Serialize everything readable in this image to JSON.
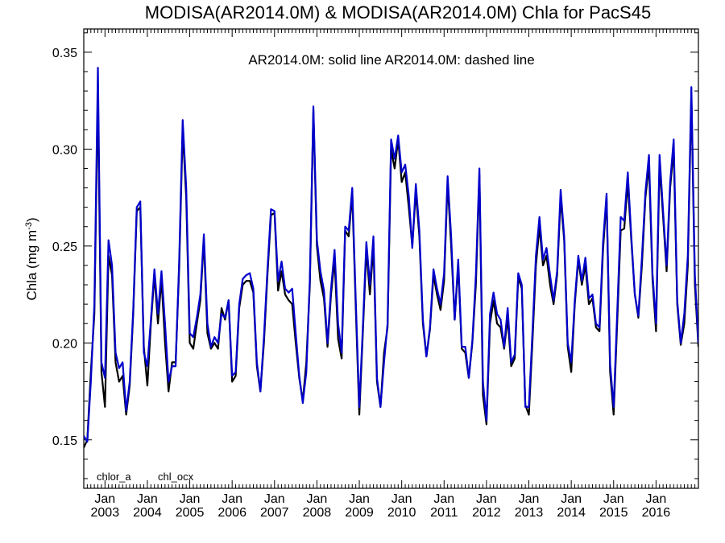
{
  "chart_data": {
    "type": "line",
    "title": "MODISA(AR2014.0M) & MODISA(AR2014.0M)  Chla for PacS45",
    "annotation": "AR2014.0M: solid line   AR2014.0M: dashed line",
    "ylabel": "Chla (mg m",
    "ylabel_sup": "-3",
    "ylabel_close": ")",
    "xlabel": "",
    "xlim": [
      2002.5,
      2017.0
    ],
    "ylim": [
      0.125,
      0.362
    ],
    "yticks": [
      0.15,
      0.2,
      0.25,
      0.3,
      0.35
    ],
    "ytick_labels": [
      "0.15",
      "0.20",
      "0.25",
      "0.30",
      "0.35"
    ],
    "xticks": [
      2003,
      2004,
      2005,
      2006,
      2007,
      2008,
      2009,
      2010,
      2011,
      2012,
      2013,
      2014,
      2015,
      2016
    ],
    "xtick_month": "Jan",
    "xtick_years": [
      "2003",
      "2004",
      "2005",
      "2006",
      "2007",
      "2008",
      "2009",
      "2010",
      "2011",
      "2012",
      "2013",
      "2014",
      "2015",
      "2016"
    ],
    "grid": false,
    "legend_position": "bottom-left",
    "x_start": 2002.5,
    "x_step_months": 1,
    "series": [
      {
        "name": "chlor_a",
        "color": "#000000",
        "values": [
          0.146,
          0.15,
          0.185,
          0.215,
          0.33,
          0.185,
          0.167,
          0.245,
          0.235,
          0.19,
          0.18,
          0.183,
          0.163,
          0.178,
          0.215,
          0.268,
          0.27,
          0.198,
          0.178,
          0.21,
          0.235,
          0.21,
          0.233,
          0.2,
          0.175,
          0.19,
          0.19,
          0.238,
          0.31,
          0.275,
          0.2,
          0.197,
          0.21,
          0.222,
          0.253,
          0.205,
          0.197,
          0.2,
          0.197,
          0.218,
          0.212,
          0.222,
          0.18,
          0.183,
          0.218,
          0.23,
          0.232,
          0.232,
          0.226,
          0.188,
          0.175,
          0.2,
          0.235,
          0.266,
          0.267,
          0.227,
          0.237,
          0.225,
          0.222,
          0.22,
          0.2,
          0.182,
          0.17,
          0.19,
          0.23,
          0.32,
          0.25,
          0.232,
          0.223,
          0.198,
          0.225,
          0.243,
          0.202,
          0.192,
          0.258,
          0.255,
          0.277,
          0.218,
          0.163,
          0.205,
          0.248,
          0.225,
          0.25,
          0.18,
          0.167,
          0.195,
          0.208,
          0.3,
          0.29,
          0.305,
          0.283,
          0.288,
          0.27,
          0.25,
          0.278,
          0.255,
          0.21,
          0.193,
          0.207,
          0.235,
          0.225,
          0.217,
          0.232,
          0.283,
          0.25,
          0.212,
          0.24,
          0.197,
          0.195,
          0.182,
          0.2,
          0.23,
          0.287,
          0.173,
          0.158,
          0.21,
          0.222,
          0.21,
          0.208,
          0.197,
          0.213,
          0.188,
          0.192,
          0.234,
          0.228,
          0.168,
          0.163,
          0.2,
          0.24,
          0.26,
          0.24,
          0.245,
          0.23,
          0.22,
          0.235,
          0.275,
          0.253,
          0.198,
          0.185,
          0.22,
          0.243,
          0.23,
          0.24,
          0.22,
          0.223,
          0.208,
          0.206,
          0.248,
          0.275,
          0.185,
          0.163,
          0.21,
          0.258,
          0.259,
          0.283,
          0.253,
          0.225,
          0.213,
          0.24,
          0.275,
          0.292,
          0.233,
          0.206,
          0.292,
          0.265,
          0.237,
          0.28,
          0.3,
          0.22,
          0.199,
          0.21,
          0.24,
          0.328,
          0.23,
          0.198
        ]
      },
      {
        "name": "chl_ocx",
        "color": "#0000cc",
        "values": [
          0.152,
          0.149,
          0.18,
          0.22,
          0.342,
          0.19,
          0.182,
          0.253,
          0.24,
          0.195,
          0.187,
          0.19,
          0.165,
          0.18,
          0.217,
          0.27,
          0.273,
          0.195,
          0.188,
          0.212,
          0.238,
          0.215,
          0.237,
          0.21,
          0.18,
          0.188,
          0.188,
          0.242,
          0.315,
          0.28,
          0.205,
          0.203,
          0.213,
          0.225,
          0.256,
          0.21,
          0.198,
          0.203,
          0.2,
          0.215,
          0.213,
          0.222,
          0.183,
          0.185,
          0.22,
          0.233,
          0.235,
          0.236,
          0.228,
          0.19,
          0.175,
          0.203,
          0.238,
          0.269,
          0.268,
          0.232,
          0.242,
          0.228,
          0.226,
          0.228,
          0.205,
          0.183,
          0.169,
          0.185,
          0.233,
          0.322,
          0.253,
          0.237,
          0.227,
          0.2,
          0.228,
          0.248,
          0.21,
          0.195,
          0.26,
          0.258,
          0.28,
          0.222,
          0.167,
          0.208,
          0.252,
          0.23,
          0.255,
          0.182,
          0.167,
          0.19,
          0.21,
          0.305,
          0.295,
          0.307,
          0.288,
          0.292,
          0.276,
          0.249,
          0.282,
          0.258,
          0.212,
          0.193,
          0.208,
          0.238,
          0.228,
          0.22,
          0.236,
          0.286,
          0.255,
          0.212,
          0.243,
          0.198,
          0.198,
          0.182,
          0.201,
          0.235,
          0.29,
          0.18,
          0.16,
          0.215,
          0.226,
          0.215,
          0.212,
          0.198,
          0.218,
          0.19,
          0.194,
          0.236,
          0.23,
          0.167,
          0.167,
          0.205,
          0.245,
          0.265,
          0.243,
          0.249,
          0.235,
          0.222,
          0.237,
          0.279,
          0.255,
          0.2,
          0.19,
          0.222,
          0.245,
          0.232,
          0.244,
          0.223,
          0.225,
          0.21,
          0.208,
          0.252,
          0.277,
          0.189,
          0.167,
          0.215,
          0.265,
          0.263,
          0.288,
          0.255,
          0.225,
          0.214,
          0.244,
          0.278,
          0.297,
          0.236,
          0.21,
          0.297,
          0.268,
          0.24,
          0.283,
          0.305,
          0.222,
          0.2,
          0.215,
          0.245,
          0.332,
          0.235,
          0.2
        ]
      }
    ]
  }
}
